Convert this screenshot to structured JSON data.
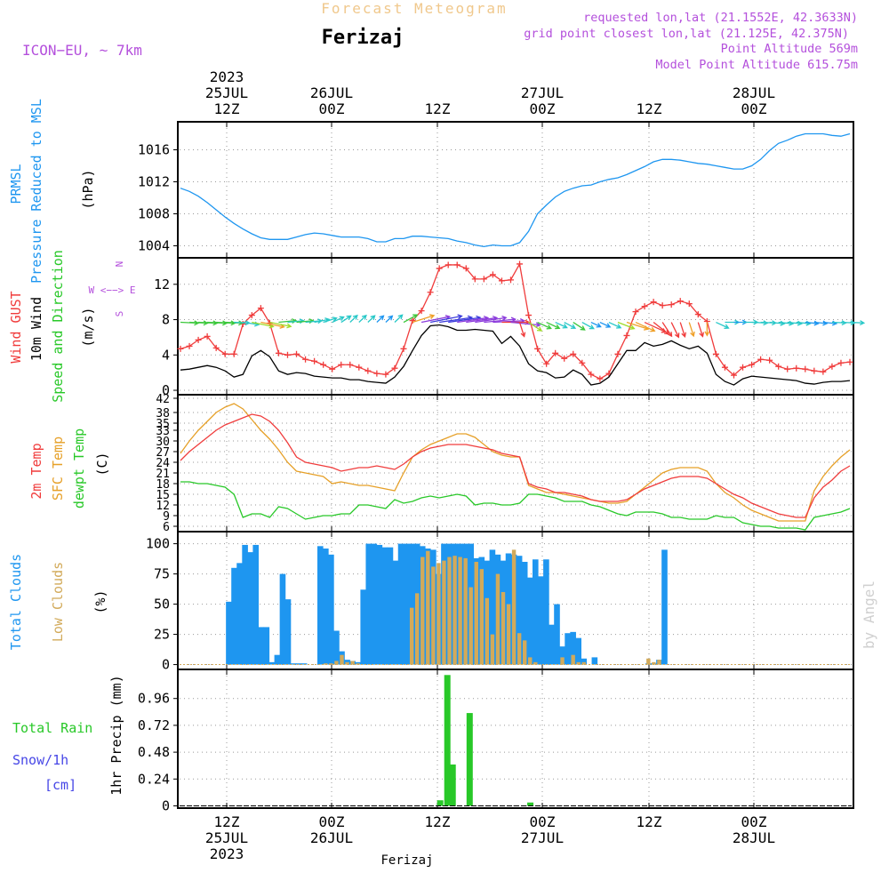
{
  "header": {
    "title_top": "Forecast Meteogram",
    "location": "Ferizaj",
    "model": "ICON−EU, ~ 7km",
    "requested": "requested lon,lat (21.1552E, 42.3633N)",
    "grid_point": "grid point closest lon,lat (21.125E, 42.375N)",
    "point_alt": "Point Altitude 569m",
    "model_alt": "Model Point Altitude 615.75m",
    "footer": "Ferizaj",
    "credit": "by Angel"
  },
  "time_axis": {
    "top": [
      {
        "l1": "2023",
        "l2": "25JUL",
        "l3": "12Z"
      },
      {
        "l1": "",
        "l2": "26JUL",
        "l3": "00Z"
      },
      {
        "l1": "",
        "l2": "",
        "l3": "12Z"
      },
      {
        "l1": "",
        "l2": "27JUL",
        "l3": "00Z"
      },
      {
        "l1": "",
        "l2": "",
        "l3": "12Z"
      },
      {
        "l1": "",
        "l2": "28JUL",
        "l3": "00Z"
      }
    ],
    "bottom": [
      {
        "l1": "12Z",
        "l2": "25JUL",
        "l3": "2023"
      },
      {
        "l1": "00Z",
        "l2": "26JUL",
        "l3": ""
      },
      {
        "l1": "12Z",
        "l2": "",
        "l3": ""
      },
      {
        "l1": "00Z",
        "l2": "27JUL",
        "l3": ""
      },
      {
        "l1": "12Z",
        "l2": "",
        "l3": ""
      },
      {
        "l1": "00Z",
        "l2": "28JUL",
        "l3": ""
      }
    ]
  },
  "colors": {
    "pressure": "#1e96f0",
    "gust": "#f03c3c",
    "wind": "#000000",
    "dir": "#28c828",
    "temp2m": "#f03c3c",
    "sfc": "#e6a028",
    "dewpt": "#28c828",
    "total_clouds": "#1e96f0",
    "low_clouds": "#d2aa5a",
    "rain": "#28c828",
    "snow": "#4646e6",
    "header_purple": "#b450dc",
    "title_faint": "#f0c88c"
  },
  "chart_data": [
    {
      "type": "line",
      "panel": "pressure",
      "ylabels": [
        "PRMSL",
        "Pressure Reduced to MSL",
        "(hPa)"
      ],
      "yticks": [
        1004,
        1008,
        1012,
        1016
      ],
      "ylim": [
        1002.5,
        1019.5
      ],
      "series": [
        {
          "x": [
            0,
            1,
            2,
            3,
            4,
            5,
            6,
            7,
            8,
            9,
            10,
            11,
            12,
            13,
            14,
            15,
            16,
            17,
            18,
            19,
            20,
            21,
            22,
            23,
            24,
            25,
            26,
            27,
            28,
            29,
            30,
            31,
            32,
            33,
            34,
            35,
            36,
            37,
            38,
            39,
            40,
            41,
            42,
            43,
            44,
            45,
            46,
            47,
            48,
            49,
            50,
            51,
            52,
            53,
            54,
            55,
            56,
            57,
            58,
            59,
            60,
            61,
            62,
            63,
            64,
            65,
            66,
            67,
            68,
            69,
            70,
            71,
            72,
            73,
            74,
            75
          ],
          "values": [
            1011.2,
            1010.8,
            1010.2,
            1009.4,
            1008.5,
            1007.6,
            1006.8,
            1006.1,
            1005.5,
            1005.0,
            1004.8,
            1004.8,
            1004.8,
            1005.1,
            1005.4,
            1005.6,
            1005.5,
            1005.3,
            1005.1,
            1005.1,
            1005.1,
            1004.9,
            1004.5,
            1004.5,
            1004.9,
            1004.9,
            1005.2,
            1005.2,
            1005.1,
            1005.0,
            1004.9,
            1004.6,
            1004.4,
            1004.1,
            1003.9,
            1004.1,
            1004.0,
            1004.0,
            1004.4,
            1005.8,
            1008.0,
            1009.1,
            1010.1,
            1010.8,
            1011.2,
            1011.5,
            1011.6,
            1012.0,
            1012.3,
            1012.5,
            1012.9,
            1013.4,
            1013.9,
            1014.5,
            1014.8,
            1014.8,
            1014.7,
            1014.5,
            1014.3,
            1014.2,
            1014.0,
            1013.8,
            1013.6,
            1013.6,
            1014.0,
            1014.8,
            1015.9,
            1016.8,
            1017.2,
            1017.7,
            1018.0,
            1018.0,
            1018.0,
            1017.8,
            1017.7,
            1018.0
          ],
          "name": ""
        }
      ]
    },
    {
      "type": "line",
      "panel": "wind",
      "ylabels": [
        "Wind GUST",
        "10m Wind",
        "Speed and Direction",
        "(m/s)"
      ],
      "compass": [
        "N",
        "W <−−> E",
        "S"
      ],
      "yticks": [
        0,
        4,
        8,
        12
      ],
      "ylim": [
        -0.5,
        15
      ],
      "series": [
        {
          "name": "gust",
          "values": [
            4.7,
            5.0,
            5.7,
            6.1,
            4.8,
            4.1,
            4.1,
            7.5,
            8.5,
            9.3,
            7.6,
            4.2,
            4.0,
            4.1,
            3.5,
            3.3,
            2.9,
            2.4,
            2.9,
            2.9,
            2.6,
            2.2,
            1.9,
            1.8,
            2.5,
            4.7,
            7.9,
            9.0,
            11.1,
            13.8,
            14.2,
            14.2,
            13.8,
            12.6,
            12.6,
            13.1,
            12.4,
            12.5,
            14.3,
            8.5,
            4.7,
            3.0,
            4.2,
            3.6,
            4.1,
            3.1,
            1.8,
            1.3,
            1.9,
            4.1,
            6.2,
            8.9,
            9.5,
            10.0,
            9.6,
            9.7,
            10.1,
            9.8,
            8.6,
            7.8,
            4.1,
            2.6,
            1.7,
            2.6,
            2.9,
            3.5,
            3.4,
            2.7,
            2.4,
            2.5,
            2.4,
            2.2,
            2.1,
            2.7,
            3.1,
            3.2
          ]
        },
        {
          "name": "wind",
          "values": [
            2.3,
            2.4,
            2.6,
            2.8,
            2.6,
            2.2,
            1.5,
            1.8,
            3.9,
            4.5,
            3.8,
            2.2,
            1.8,
            2.0,
            1.9,
            1.6,
            1.5,
            1.4,
            1.4,
            1.2,
            1.2,
            1.0,
            0.9,
            0.8,
            1.5,
            2.7,
            4.5,
            6.2,
            7.3,
            7.4,
            7.2,
            6.8,
            6.8,
            6.9,
            6.8,
            6.7,
            5.3,
            6.1,
            5.0,
            3.0,
            2.2,
            2.0,
            1.4,
            1.5,
            2.3,
            1.8,
            0.6,
            0.8,
            1.5,
            3.0,
            4.5,
            4.5,
            5.4,
            5.0,
            5.2,
            5.6,
            5.1,
            4.7,
            5.0,
            4.2,
            1.8,
            1.0,
            0.6,
            1.3,
            1.6,
            1.5,
            1.4,
            1.3,
            1.2,
            1.1,
            0.8,
            0.7,
            0.9,
            1.0,
            1.0,
            1.1
          ]
        },
        {
          "name": "direction_deg",
          "values": [
            95,
            95,
            95,
            95,
            95,
            95,
            95,
            105,
            110,
            110,
            110,
            80,
            80,
            80,
            80,
            70,
            60,
            50,
            40,
            30,
            30,
            30,
            30,
            30,
            30,
            45,
            60,
            70,
            70,
            75,
            75,
            75,
            75,
            75,
            80,
            85,
            90,
            100,
            170,
            140,
            130,
            130,
            130,
            135,
            140,
            135,
            130,
            130,
            130,
            125,
            120,
            130,
            130,
            145,
            160,
            165,
            170,
            170,
            170,
            180,
            130,
            90,
            90,
            90,
            95,
            95,
            100,
            100,
            100,
            100,
            100,
            100,
            100,
            95,
            95,
            95
          ]
        }
      ]
    },
    {
      "type": "line",
      "panel": "temperature",
      "ylabels": [
        "2m Temp",
        "SFC Temp",
        "dewpt Temp",
        "(C)"
      ],
      "yticks": [
        6,
        9,
        12,
        15,
        18,
        21,
        24,
        27,
        30,
        33,
        35,
        38,
        42
      ],
      "ylim": [
        4.5,
        43
      ],
      "series": [
        {
          "name": "2m",
          "values": [
            24.5,
            27.0,
            29.0,
            31.0,
            33.0,
            34.5,
            35.5,
            36.5,
            37.5,
            37.0,
            35.5,
            33.0,
            29.5,
            25.5,
            24.0,
            23.5,
            23.0,
            22.5,
            21.5,
            22.0,
            22.5,
            22.5,
            23.0,
            22.5,
            22.0,
            23.5,
            25.5,
            27.0,
            28.0,
            28.5,
            29.0,
            29.0,
            29.0,
            28.5,
            28.0,
            27.5,
            26.5,
            26.0,
            25.5,
            18.0,
            17.0,
            16.5,
            15.5,
            15.5,
            15.0,
            14.5,
            13.5,
            13.0,
            13.0,
            13.0,
            13.5,
            15.0,
            16.5,
            17.5,
            18.5,
            19.5,
            20.0,
            20.0,
            20.0,
            19.5,
            18.0,
            16.5,
            15.0,
            14.0,
            12.5,
            11.5,
            10.5,
            9.5,
            9.0,
            8.5,
            8.5,
            14.0,
            17.0,
            19.0,
            21.5,
            23.0
          ]
        },
        {
          "name": "sfc",
          "values": [
            26.5,
            30.0,
            33.0,
            35.5,
            38.0,
            39.5,
            40.5,
            39.0,
            36.0,
            33.0,
            30.5,
            27.5,
            24.0,
            21.5,
            21.0,
            20.5,
            20.0,
            18.0,
            18.5,
            18.0,
            17.5,
            17.5,
            17.0,
            16.5,
            16.0,
            21.0,
            25.5,
            27.5,
            29.0,
            30.0,
            31.0,
            32.0,
            32.0,
            31.0,
            29.0,
            27.0,
            26.0,
            25.5,
            25.5,
            17.5,
            16.5,
            15.5,
            15.5,
            15.0,
            14.5,
            14.0,
            13.5,
            13.0,
            12.5,
            12.5,
            13.0,
            15.0,
            17.0,
            19.0,
            21.0,
            22.0,
            22.5,
            22.5,
            22.5,
            21.5,
            18.0,
            15.5,
            14.0,
            12.0,
            10.5,
            9.5,
            8.5,
            7.5,
            7.5,
            7.5,
            7.5,
            16.0,
            20.0,
            23.0,
            25.5,
            27.5
          ]
        },
        {
          "name": "dewpt",
          "values": [
            18.5,
            18.5,
            18.0,
            18.0,
            17.5,
            17.0,
            15.0,
            8.5,
            9.5,
            9.5,
            8.5,
            11.5,
            11.0,
            9.5,
            8.0,
            8.5,
            9.0,
            9.0,
            9.5,
            9.5,
            12.0,
            12.0,
            11.5,
            11.0,
            13.5,
            12.5,
            13.0,
            14.0,
            14.5,
            14.0,
            14.5,
            15.0,
            14.5,
            12.0,
            12.5,
            12.5,
            12.0,
            12.0,
            12.5,
            15.0,
            15.0,
            14.5,
            14.0,
            13.0,
            13.0,
            13.0,
            12.0,
            11.5,
            10.5,
            9.5,
            9.0,
            10.0,
            10.0,
            10.0,
            9.5,
            8.5,
            8.5,
            8.0,
            8.0,
            8.0,
            9.0,
            8.5,
            8.5,
            7.0,
            6.5,
            6.0,
            6.0,
            5.5,
            5.5,
            5.5,
            5.0,
            8.5,
            9.0,
            9.5,
            10.0,
            11.0
          ]
        }
      ]
    },
    {
      "type": "bar",
      "panel": "clouds",
      "ylabels": [
        "Total Clouds",
        "Low Clouds",
        "(%)"
      ],
      "yticks": [
        0,
        25,
        50,
        75,
        100
      ],
      "ylim": [
        -4,
        110
      ],
      "series": [
        {
          "name": "total",
          "values": [
            0,
            0,
            0,
            0,
            0,
            0,
            0,
            0,
            0,
            52,
            80,
            84,
            99,
            93,
            99,
            31,
            31,
            2,
            8,
            75,
            54,
            1,
            1,
            1,
            0,
            0,
            98,
            96,
            91,
            28,
            11,
            4,
            3,
            2,
            62,
            100,
            100,
            99,
            97,
            97,
            86,
            100,
            100,
            100,
            100,
            98,
            96,
            95,
            75,
            100,
            100,
            100,
            100,
            100,
            100,
            88,
            89,
            86,
            95,
            91,
            86,
            92,
            91,
            90,
            85,
            72,
            87,
            73,
            87,
            33,
            50,
            15,
            26,
            27,
            22,
            5,
            0,
            6,
            0,
            0,
            0,
            0,
            0,
            0,
            0,
            0,
            0,
            1,
            1,
            4,
            95
          ]
        },
        {
          "name": "low",
          "values": [
            0,
            0,
            0,
            0,
            0,
            0,
            0,
            0,
            0,
            0,
            0,
            0,
            0,
            0,
            0,
            0,
            0,
            0,
            0,
            0,
            0,
            0,
            0,
            0,
            0,
            0,
            0,
            1,
            1,
            3,
            8,
            2,
            3,
            1,
            0,
            0,
            0,
            0,
            0,
            0,
            0,
            0,
            0,
            47,
            59,
            89,
            94,
            81,
            84,
            86,
            89,
            90,
            89,
            88,
            64,
            85,
            79,
            55,
            25,
            75,
            60,
            50,
            95,
            26,
            20,
            6,
            2,
            0,
            0,
            0,
            0,
            6,
            0,
            8,
            2,
            2,
            0,
            0,
            0,
            0,
            0,
            0,
            0,
            0,
            0,
            0,
            0,
            5,
            2,
            4,
            0
          ]
        }
      ]
    },
    {
      "type": "bar",
      "panel": "precip",
      "ylabels": [
        "Total Rain",
        "Snow/1h",
        "[cm]",
        "1hr Precip (mm)"
      ],
      "yticks": [
        0,
        0.24,
        0.48,
        0.72,
        0.96
      ],
      "ylim": [
        -0.02,
        1.22
      ],
      "series": [
        {
          "name": "rain",
          "x": [
            29.1,
            29.9,
            30.5,
            32.4,
            39.2
          ],
          "values": [
            0.05,
            1.17,
            0.37,
            0.83,
            0.03
          ]
        },
        {
          "name": "snow",
          "x": [],
          "values": []
        }
      ]
    }
  ]
}
